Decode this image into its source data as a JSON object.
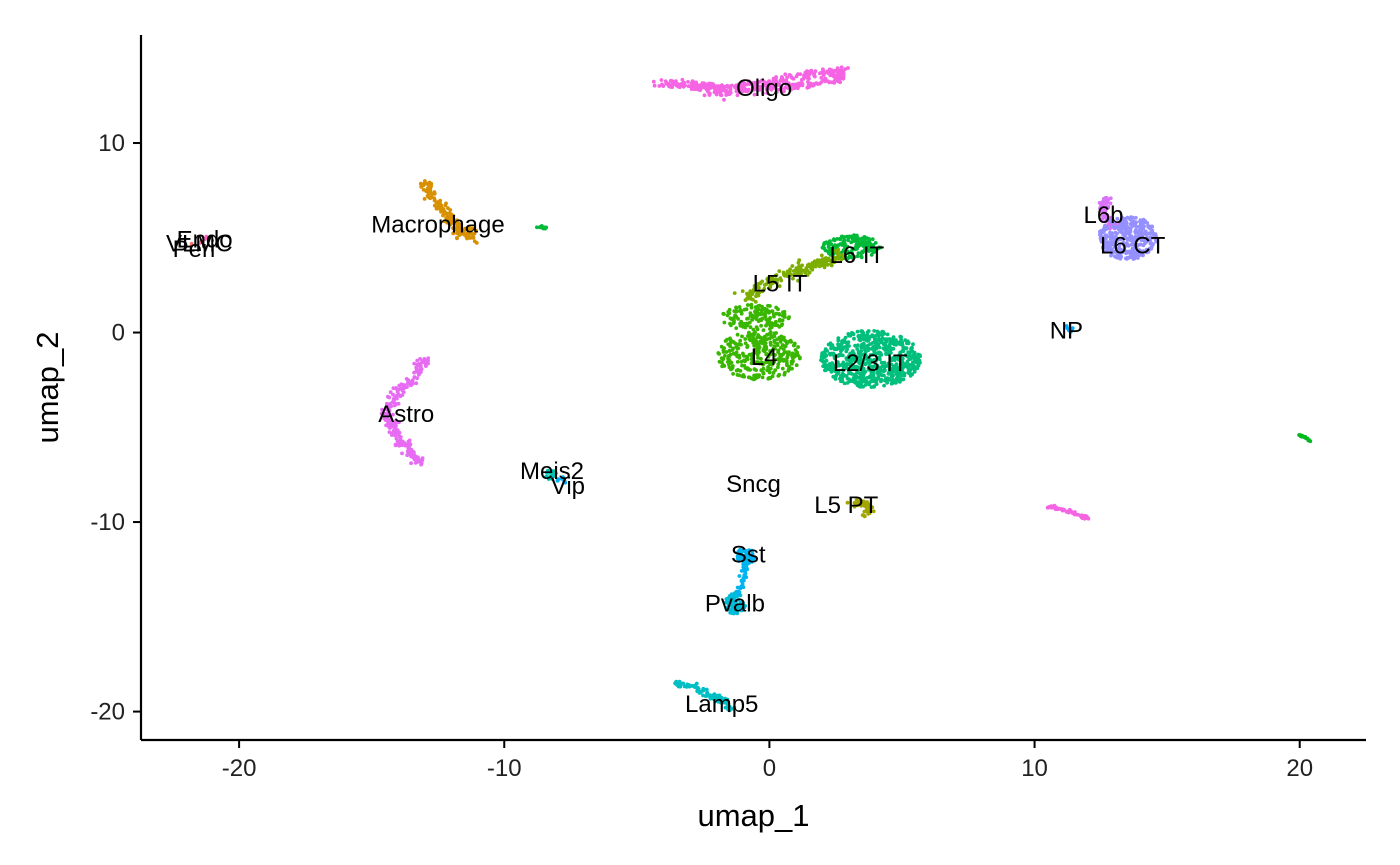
{
  "chart_data": {
    "type": "scatter",
    "title": "",
    "xlabel": "umap_1",
    "ylabel": "umap_2",
    "xlim": [
      -23.7,
      22.5
    ],
    "ylim": [
      -21.5,
      15.7
    ],
    "xticks": [
      -20,
      -10,
      0,
      10,
      20
    ],
    "xtick_labels": [
      "-20",
      "-10",
      "0",
      "10",
      "20"
    ],
    "yticks": [
      -20,
      -10,
      0,
      10
    ],
    "ytick_labels": [
      "-20",
      "-10",
      "0",
      "10"
    ],
    "grid": false,
    "legend": "none",
    "clusters": [
      {
        "name": "Oligo",
        "color": "#F564E3",
        "label_xy": [
          -0.2,
          12.9
        ],
        "shape": "path",
        "path": [
          [
            -4.3,
            13.2
          ],
          [
            -3,
            13.1
          ],
          [
            -1.8,
            12.9
          ],
          [
            0,
            13.2
          ],
          [
            1.5,
            13.6
          ],
          [
            2.8,
            13.8
          ],
          [
            2.5,
            13.3
          ],
          [
            0.5,
            12.9
          ],
          [
            -1.5,
            12.7
          ],
          [
            -3,
            12.9
          ]
        ],
        "spread": 0.22,
        "n": 420
      },
      {
        "name": "Macrophage",
        "color": "#D89000",
        "label_xy": [
          -12.5,
          5.7
        ],
        "shape": "path",
        "path": [
          [
            -13,
            8
          ],
          [
            -12.8,
            7.3
          ],
          [
            -12.4,
            6.6
          ],
          [
            -12.1,
            6
          ],
          [
            -11.6,
            5.4
          ],
          [
            -11.2,
            5.1
          ],
          [
            -12,
            5.4
          ]
        ],
        "spread": 0.25,
        "n": 150
      },
      {
        "name": "Astro",
        "color": "#E76BF3",
        "label_xy": [
          -13.7,
          -4.3
        ],
        "shape": "path",
        "path": [
          [
            -12.9,
            -1.3
          ],
          [
            -13.4,
            -2.3
          ],
          [
            -14.1,
            -3.2
          ],
          [
            -14.4,
            -4.3
          ],
          [
            -14.1,
            -5.3
          ],
          [
            -13.6,
            -6.2
          ],
          [
            -13.1,
            -7
          ]
        ],
        "spread": 0.25,
        "n": 230
      },
      {
        "name": "L6 IT",
        "color": "#00BA38",
        "label_xy": [
          3.3,
          4.1
        ],
        "shape": "blob",
        "center": [
          3.1,
          4.5
        ],
        "rx": 1.1,
        "ry": 0.65,
        "n": 160
      },
      {
        "name": "L5 IT",
        "color": "#7CAE00",
        "label_xy": [
          0.4,
          2.6
        ],
        "shape": "path",
        "path": [
          [
            -0.9,
            1.8
          ],
          [
            -0.2,
            2.5
          ],
          [
            0.5,
            3
          ],
          [
            1.3,
            3.4
          ],
          [
            2,
            3.7
          ],
          [
            2.6,
            4
          ]
        ],
        "spread": 0.32,
        "n": 190
      },
      {
        "name": "L4",
        "color": "#39B600",
        "label_xy": [
          -0.2,
          -1.3
        ],
        "shape": "blob",
        "center": [
          -0.4,
          -1.2
        ],
        "rx": 1.6,
        "ry": 1.3,
        "n": 320
      },
      {
        "name": "L4-top",
        "color": "#39B600",
        "shape": "blob",
        "center": [
          -0.5,
          0.8
        ],
        "rx": 1.3,
        "ry": 0.7,
        "n": 140
      },
      {
        "name": "L2/3 IT",
        "color": "#00BF7D",
        "label_xy": [
          3.8,
          -1.6
        ],
        "shape": "blob",
        "center": [
          3.8,
          -1.4
        ],
        "rx": 1.9,
        "ry": 1.5,
        "n": 650
      },
      {
        "name": "L6b",
        "color": "#DB72FB",
        "label_xy": [
          12.6,
          6.2
        ],
        "shape": "path",
        "path": [
          [
            12.7,
            7.2
          ],
          [
            12.6,
            6.6
          ],
          [
            12.8,
            5.9
          ],
          [
            13.1,
            5.4
          ]
        ],
        "spread": 0.22,
        "n": 70
      },
      {
        "name": "L6 CT",
        "color": "#9590FF",
        "label_xy": [
          13.7,
          4.6
        ],
        "shape": "blob",
        "center": [
          13.5,
          5
        ],
        "rx": 1.1,
        "ry": 1.15,
        "n": 330
      },
      {
        "name": "NP",
        "color": "#00A9FF",
        "label_xy": [
          11.2,
          0.1
        ],
        "shape": "blob",
        "center": [
          11.3,
          0.2
        ],
        "rx": 0.15,
        "ry": 0.2,
        "n": 10
      },
      {
        "name": "Meis2",
        "color": "#00C0AF",
        "label_xy": [
          -8.2,
          -7.3
        ],
        "shape": "blob",
        "center": [
          -8.3,
          -7.5
        ],
        "rx": 0.35,
        "ry": 0.25,
        "n": 15
      },
      {
        "name": "Vip",
        "color": "#00B0F6",
        "label_xy": [
          -7.6,
          -8.1
        ],
        "shape": "blob",
        "center": [
          -7.8,
          -7.8
        ],
        "rx": 0.25,
        "ry": 0.2,
        "n": 10
      },
      {
        "name": "Sncg",
        "color": "#00B0F6",
        "label_xy": [
          -0.6,
          -8
        ],
        "shape": "blob",
        "center": [
          -0.6,
          -8
        ],
        "rx": 0.05,
        "ry": 0.05,
        "n": 0
      },
      {
        "name": "L5 PT",
        "color": "#A3A500",
        "label_xy": [
          2.9,
          -9.1
        ],
        "shape": "path",
        "path": [
          [
            3.2,
            -9
          ],
          [
            3.6,
            -9
          ],
          [
            3.8,
            -9.4
          ],
          [
            3.5,
            -9.7
          ]
        ],
        "spread": 0.18,
        "n": 45
      },
      {
        "name": "Sst",
        "color": "#00B4F0",
        "label_xy": [
          -0.8,
          -11.7
        ],
        "shape": "blob",
        "center": [
          -0.9,
          -11.8
        ],
        "rx": 0.35,
        "ry": 0.45,
        "n": 60
      },
      {
        "name": "Pvalb",
        "color": "#00BCD8",
        "label_xy": [
          -1.3,
          -14.3
        ],
        "shape": "blob",
        "center": [
          -1.3,
          -14.3
        ],
        "rx": 0.4,
        "ry": 0.55,
        "n": 70
      },
      {
        "name": "Sst-Pvalb bridge",
        "color": "#00B4F0",
        "shape": "path",
        "path": [
          [
            -0.9,
            -12.1
          ],
          [
            -1,
            -13
          ],
          [
            -1.2,
            -13.8
          ]
        ],
        "spread": 0.12,
        "n": 30
      },
      {
        "name": "Lamp5",
        "color": "#00BFC4",
        "label_xy": [
          -1.8,
          -19.6
        ],
        "shape": "path",
        "path": [
          [
            -3.5,
            -18.5
          ],
          [
            -2.9,
            -18.6
          ],
          [
            -2.3,
            -19.1
          ],
          [
            -1.8,
            -19.4
          ],
          [
            -1.4,
            -19.9
          ]
        ],
        "spread": 0.18,
        "n": 110
      },
      {
        "name": "Endo",
        "color": "#FF62BC",
        "label_xy": [
          -21.3,
          4.9
        ],
        "shape": "blob",
        "center": [
          -21.2,
          5
        ],
        "rx": 0.15,
        "ry": 0.1,
        "n": 3
      },
      {
        "name": "VLMC",
        "color": "#FF6C91",
        "label_xy": [
          -21.5,
          4.7
        ],
        "shape": "blob",
        "center": [
          -21.5,
          4.8
        ],
        "rx": 0.1,
        "ry": 0.1,
        "n": 2
      },
      {
        "name": "Peri",
        "color": "#F8766D",
        "label_xy": [
          -21.7,
          4.4
        ],
        "shape": "blob",
        "center": [
          -21.8,
          4.6
        ],
        "rx": 0.1,
        "ry": 0.1,
        "n": 2
      },
      {
        "name": "unlabeled-green-near-macrophage",
        "color": "#00BA38",
        "shape": "path",
        "path": [
          [
            -8.8,
            5.6
          ],
          [
            -8.4,
            5.5
          ]
        ],
        "spread": 0.06,
        "n": 12
      },
      {
        "name": "unlabeled-pink-right",
        "color": "#F564E3",
        "shape": "path",
        "path": [
          [
            10.5,
            -9.2
          ],
          [
            11.2,
            -9.4
          ],
          [
            12,
            -9.8
          ]
        ],
        "spread": 0.08,
        "n": 55
      },
      {
        "name": "unlabeled-green-far-right",
        "color": "#00B81F",
        "shape": "path",
        "path": [
          [
            20,
            -5.4
          ],
          [
            20.4,
            -5.7
          ]
        ],
        "spread": 0.05,
        "n": 14
      }
    ]
  }
}
